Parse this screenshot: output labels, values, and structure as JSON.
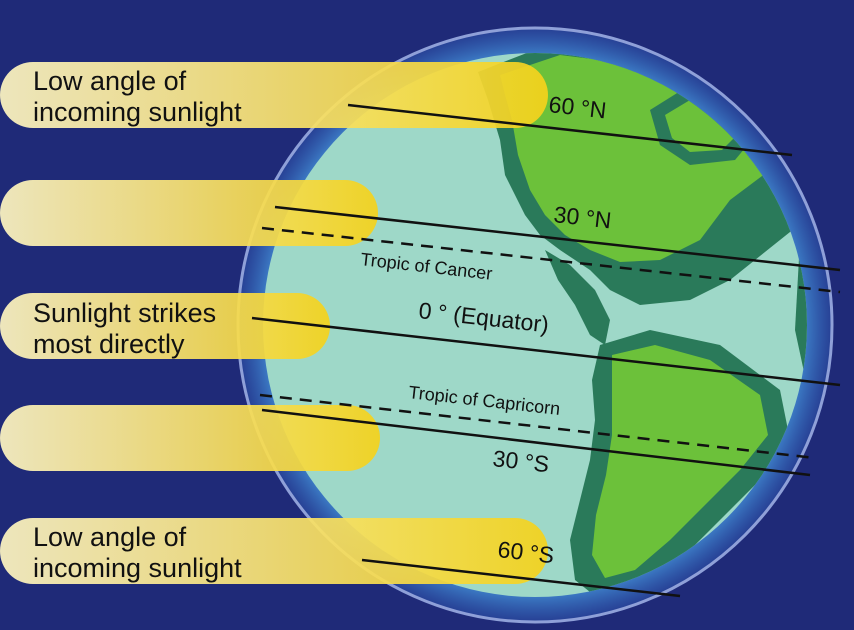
{
  "colors": {
    "background": "#1f2a78",
    "sunlight": "#f5d21a",
    "ocean": "#9ed8c8",
    "land_light": "#6cc13a",
    "land_dark": "#2a7a5a",
    "atmosphere": "#5aa9e6"
  },
  "sunlight_labels": {
    "top": [
      "Low angle of",
      "incoming sunlight"
    ],
    "middle": [
      "Sunlight strikes",
      "most directly"
    ],
    "bottom": [
      "Low angle of",
      "incoming sunlight"
    ]
  },
  "latitudes": {
    "n60": "60 °N",
    "n30": "30 °N",
    "cancer": "Tropic of Cancer",
    "equator": "0 ° (Equator)",
    "capricorn": "Tropic of Capricorn",
    "s30": "30 °S",
    "s60": "60 °S"
  }
}
